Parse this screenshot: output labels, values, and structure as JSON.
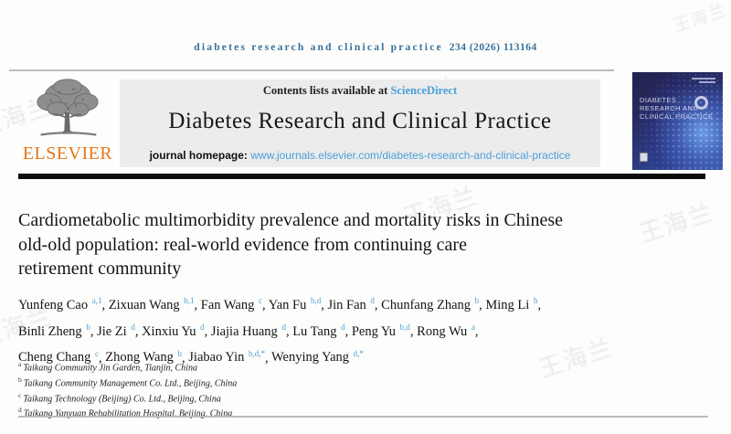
{
  "page": {
    "watermark": "王海兰"
  },
  "ref_line": {
    "journal": "diabetes research and clinical practice",
    "citation": "234 (2026) 113164"
  },
  "header": {
    "contents_prefix": "Contents lists available at",
    "sciencedirect_link": "ScienceDirect",
    "journal_title": "Diabetes Research and Clinical Practice",
    "homepage_label": "journal homepage:",
    "homepage_url": "www.journals.elsevier.com/diabetes-research-and-clinical-practice",
    "publisher": "ELSEVIER",
    "cover": {
      "line1": "DIABETES",
      "line2": "RESEARCH AND",
      "line3": "CLINICAL PRACTICE"
    }
  },
  "article": {
    "title_lines": [
      "Cardiometabolic multimorbidity prevalence and mortality risks in Chinese",
      "old-old population: real-world evidence from continuing care",
      "retirement community"
    ],
    "author_lines": [
      [
        {
          "name": "Yunfeng Cao",
          "sup": "a,1"
        },
        {
          "name": "Zixuan Wang",
          "sup": "b,1"
        },
        {
          "name": "Fan Wang",
          "sup": "c"
        },
        {
          "name": "Yan Fu",
          "sup": "b,d"
        },
        {
          "name": "Jin Fan",
          "sup": "d"
        },
        {
          "name": "Chunfang Zhang",
          "sup": "b"
        },
        {
          "name": "Ming Li",
          "sup": "b"
        }
      ],
      [
        {
          "name": "Binli Zheng",
          "sup": "b"
        },
        {
          "name": "Jie Zi",
          "sup": "d"
        },
        {
          "name": "Xinxiu Yu",
          "sup": "d"
        },
        {
          "name": "Jiajia Huang",
          "sup": "d"
        },
        {
          "name": "Lu Tang",
          "sup": "d"
        },
        {
          "name": "Peng Yu",
          "sup": "b,d"
        },
        {
          "name": "Rong Wu",
          "sup": "a"
        }
      ],
      [
        {
          "name": "Cheng Chang",
          "sup": "c"
        },
        {
          "name": "Zhong Wang",
          "sup": "b"
        },
        {
          "name": "Jiabao Yin",
          "sup": "b,d,*"
        },
        {
          "name": "Wenying Yang",
          "sup": "d,*"
        }
      ]
    ],
    "affiliations": [
      {
        "sup": "a",
        "text": "Taikang Community Jin Garden, Tianjin, China"
      },
      {
        "sup": "b",
        "text": "Taikang Community Management Co. Ltd., Beijing, China"
      },
      {
        "sup": "c",
        "text": "Taikang Technology (Beijing) Co. Ltd., Beijing, China"
      },
      {
        "sup": "d",
        "text": "Taikang Yanyuan Rehabilitation Hospital, Beijing, China"
      }
    ]
  },
  "colors": {
    "link_blue": "#4a9fd8",
    "ref_blue": "#36719c",
    "superscript_blue": "#4aa0d8",
    "elsevier_orange": "#e2761a",
    "gray_box": "#ececec",
    "black_bar": "#0d0d0d"
  }
}
